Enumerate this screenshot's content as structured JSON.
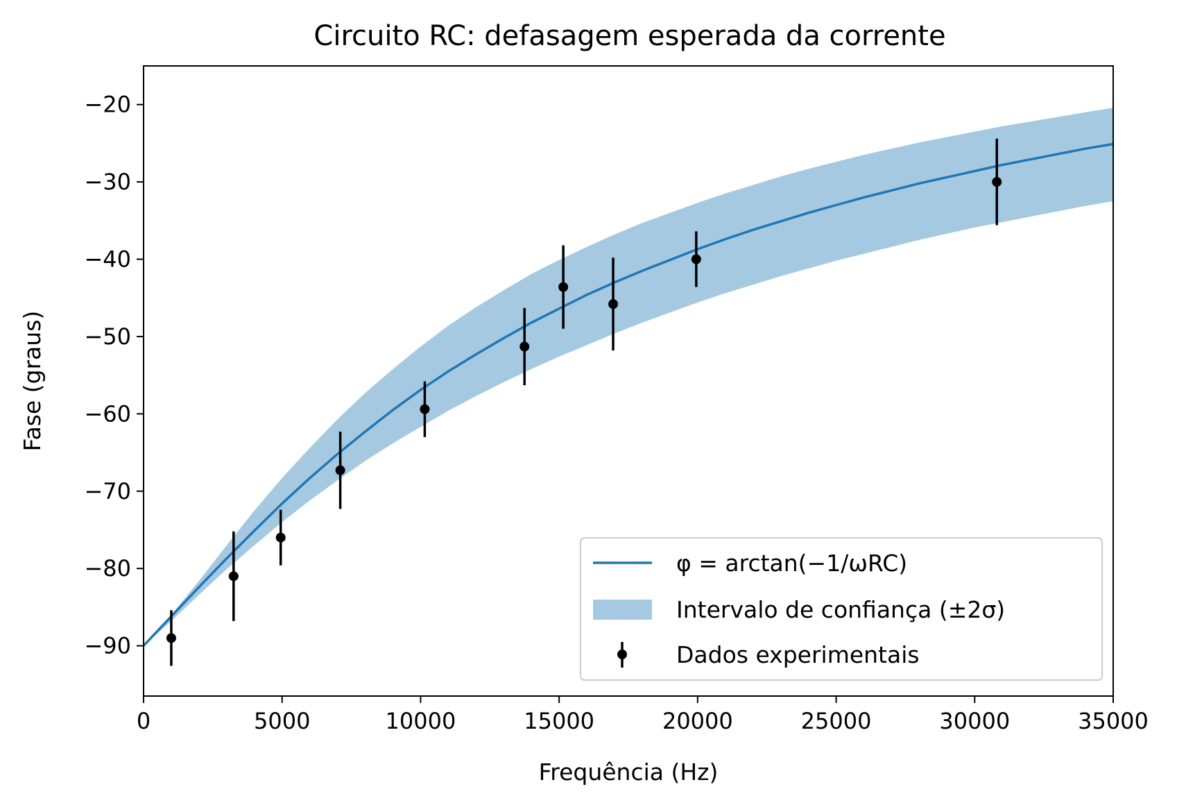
{
  "chart_data": {
    "type": "line",
    "title": "Circuito RC: defasagem esperada da corrente",
    "xlabel": "Frequência (Hz)",
    "ylabel": "Fase (graus)",
    "xlim": [
      0,
      35000
    ],
    "ylim": [
      -96.5,
      -15
    ],
    "xticks": [
      0,
      5000,
      10000,
      15000,
      20000,
      25000,
      30000,
      35000
    ],
    "xtick_labels": [
      "0",
      "5000",
      "10000",
      "15000",
      "20000",
      "25000",
      "30000",
      "35000"
    ],
    "yticks": [
      -90,
      -80,
      -70,
      -60,
      -50,
      -40,
      -30,
      -20
    ],
    "ytick_labels": [
      "−90",
      "−80",
      "−70",
      "−60",
      "−50",
      "−40",
      "−30",
      "−20"
    ],
    "grid": false,
    "legend_position": "lower-right",
    "model": {
      "name": "φ = arctan(−1/ωRC)",
      "color": "#1f77b4",
      "x": [
        0,
        1000,
        2000,
        3000,
        4000,
        5000,
        6000,
        7000,
        8000,
        9000,
        10000,
        11000,
        12000,
        13000,
        14000,
        15000,
        16000,
        17000,
        18000,
        19000,
        20000,
        21000,
        22000,
        23000,
        24000,
        25000,
        26000,
        27000,
        28000,
        29000,
        30000,
        31000,
        32000,
        33000,
        34000,
        35000
      ],
      "y": [
        -90,
        -86.2,
        -82.4,
        -78.7,
        -75.1,
        -71.6,
        -68.3,
        -65.2,
        -62.3,
        -59.5,
        -56.9,
        -54.5,
        -52.3,
        -50.2,
        -48.2,
        -46.4,
        -44.6,
        -43.0,
        -41.5,
        -40.1,
        -38.7,
        -37.4,
        -36.2,
        -35.1,
        -34.0,
        -33.0,
        -32.0,
        -31.1,
        -30.2,
        -29.4,
        -28.6,
        -27.8,
        -27.1,
        -26.4,
        -25.7,
        -25.1
      ]
    },
    "band": {
      "name": "Intervalo de confiança (±2σ)",
      "color": "#a6c9e2",
      "x": [
        0,
        1000,
        2000,
        3000,
        4000,
        5000,
        6000,
        7000,
        8000,
        9000,
        10000,
        11000,
        12000,
        13000,
        14000,
        15000,
        16000,
        17000,
        18000,
        19000,
        20000,
        21000,
        22000,
        23000,
        24000,
        25000,
        26000,
        27000,
        28000,
        29000,
        30000,
        31000,
        32000,
        33000,
        34000,
        35000
      ],
      "upper": [
        -90,
        -86.0,
        -81.6,
        -77.0,
        -72.5,
        -68.3,
        -64.4,
        -60.7,
        -57.3,
        -54.2,
        -51.3,
        -48.6,
        -46.2,
        -44.0,
        -41.9,
        -40.1,
        -38.4,
        -36.8,
        -35.3,
        -34.0,
        -32.7,
        -31.5,
        -30.4,
        -29.3,
        -28.3,
        -27.4,
        -26.5,
        -25.7,
        -24.9,
        -24.2,
        -23.5,
        -22.8,
        -22.2,
        -21.6,
        -21.0,
        -20.4
      ],
      "lower": [
        -90,
        -86.8,
        -83.4,
        -80.1,
        -77.0,
        -74.0,
        -71.2,
        -68.6,
        -66.1,
        -63.8,
        -61.7,
        -59.6,
        -57.7,
        -55.9,
        -54.2,
        -52.6,
        -51.1,
        -49.6,
        -48.2,
        -46.9,
        -45.6,
        -44.4,
        -43.3,
        -42.2,
        -41.2,
        -40.2,
        -39.3,
        -38.4,
        -37.5,
        -36.7,
        -35.9,
        -35.2,
        -34.5,
        -33.8,
        -33.1,
        -32.5
      ]
    },
    "points": {
      "name": "Dados experimentais",
      "color": "#000000",
      "x": [
        1000,
        3250,
        4950,
        7100,
        10150,
        13750,
        15150,
        16950,
        19950,
        30800
      ],
      "y": [
        -89.0,
        -81.0,
        -76.0,
        -67.3,
        -59.4,
        -51.3,
        -43.6,
        -45.8,
        -40.0,
        -30.0
      ],
      "yerr": [
        3.6,
        5.8,
        3.6,
        5.0,
        3.6,
        5.0,
        5.4,
        6.0,
        3.6,
        5.6
      ]
    }
  }
}
